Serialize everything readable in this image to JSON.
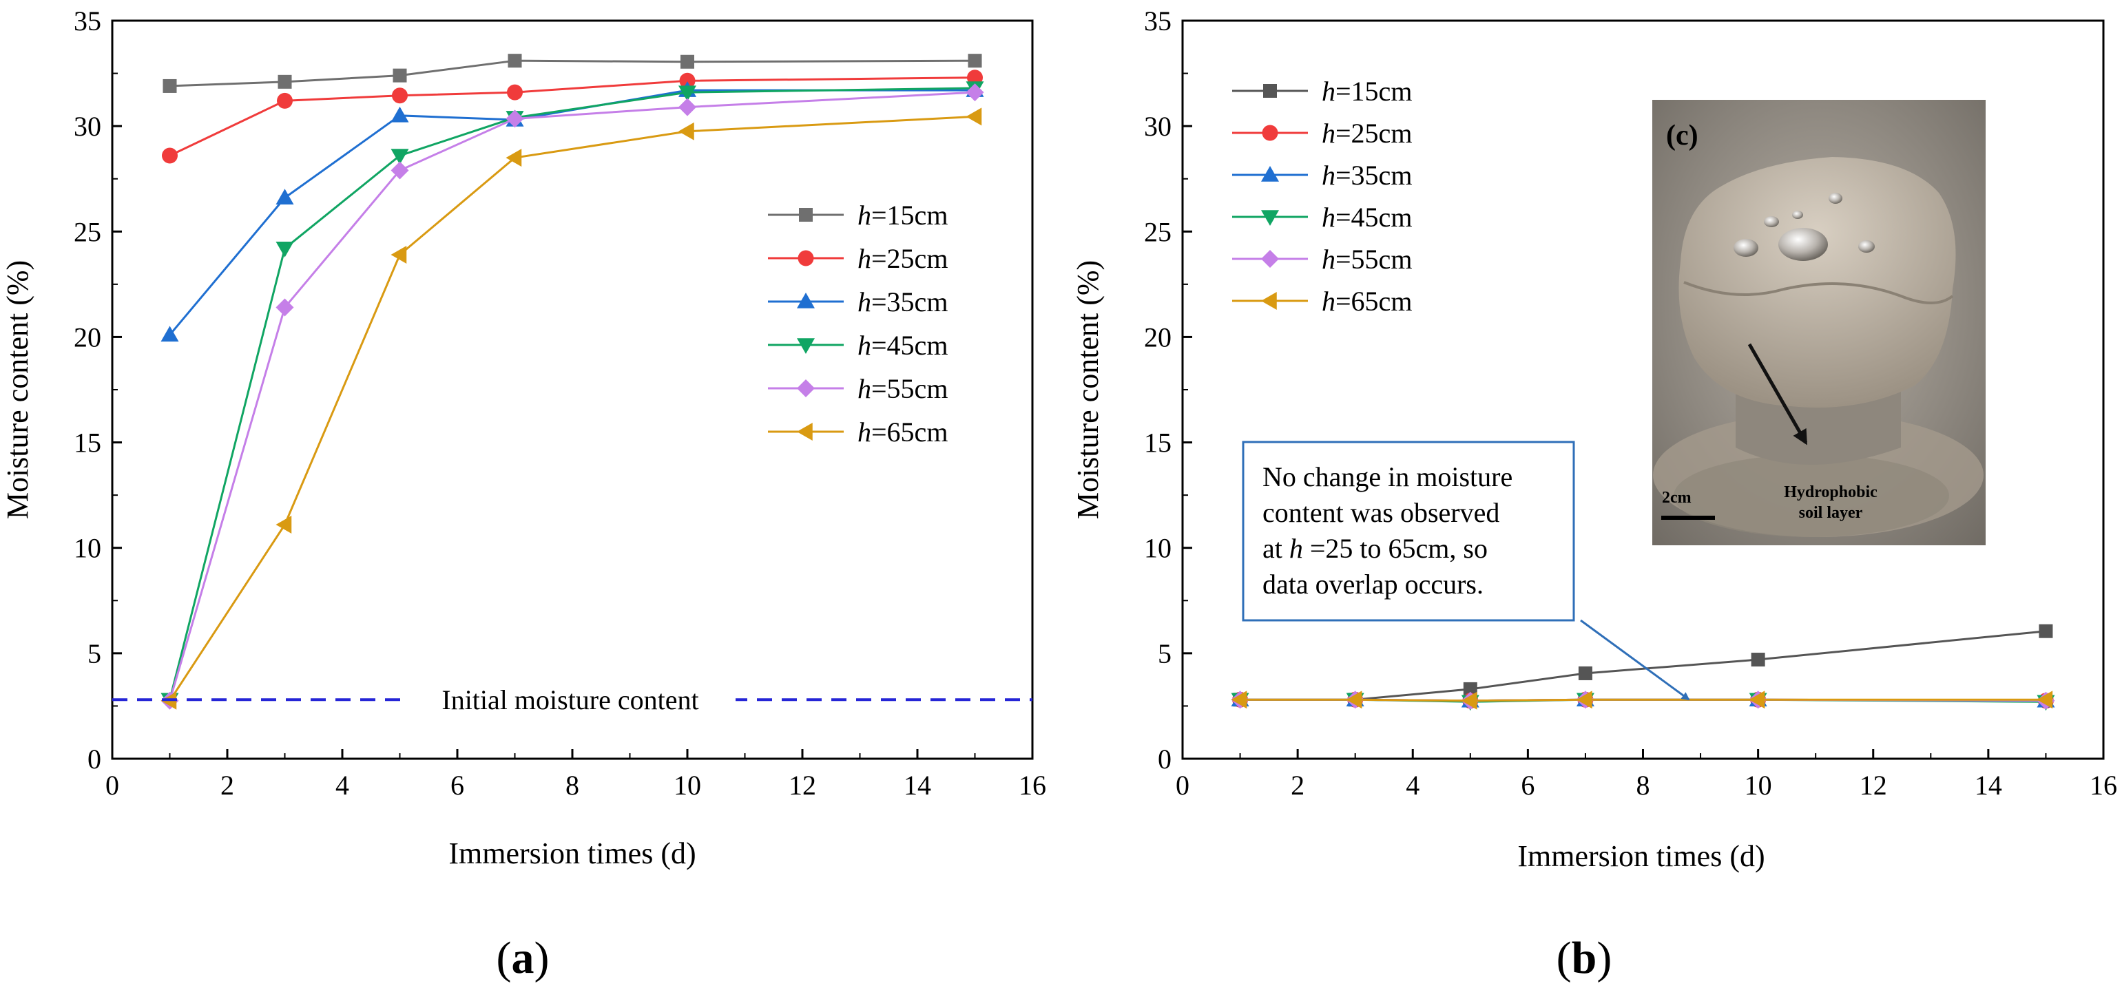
{
  "chart_data": [
    {
      "type": "line",
      "panel_label": "(a)",
      "panel_letter": "a",
      "xlabel": "Immersion times (d)",
      "ylabel": "Moisture content (%)",
      "xlim": [
        0,
        16
      ],
      "ylim": [
        0,
        35
      ],
      "x_ticks": [
        0,
        2,
        4,
        6,
        8,
        10,
        12,
        14,
        16
      ],
      "y_ticks": [
        0,
        5,
        10,
        15,
        20,
        25,
        30,
        35
      ],
      "grid": false,
      "legend_position": "right",
      "x": [
        1,
        3,
        5,
        7,
        10,
        15
      ],
      "series": [
        {
          "name": "h=15cm",
          "var": "h",
          "rest": "=15cm",
          "color": "#6f6f6f",
          "marker": "square",
          "values": [
            31.9,
            32.1,
            32.4,
            33.1,
            33.05,
            33.1
          ]
        },
        {
          "name": "h=25cm",
          "var": "h",
          "rest": "=25cm",
          "color": "#f03b3b",
          "marker": "circle",
          "values": [
            28.6,
            31.2,
            31.45,
            31.6,
            32.15,
            32.3
          ]
        },
        {
          "name": "h=35cm",
          "var": "h",
          "rest": "=35cm",
          "color": "#1f6fd1",
          "marker": "triangle-up",
          "values": [
            20.1,
            26.6,
            30.5,
            30.3,
            31.7,
            31.7
          ]
        },
        {
          "name": "h=45cm",
          "var": "h",
          "rest": "=45cm",
          "color": "#10a563",
          "marker": "triangle-down",
          "values": [
            2.8,
            24.2,
            28.6,
            30.4,
            31.6,
            31.8
          ]
        },
        {
          "name": "h=55cm",
          "var": "h",
          "rest": "=55cm",
          "color": "#c57fe8",
          "marker": "diamond",
          "values": [
            2.75,
            21.4,
            27.9,
            30.35,
            30.9,
            31.6
          ]
        },
        {
          "name": "h=65cm",
          "var": "h",
          "rest": "=65cm",
          "color": "#d99a12",
          "marker": "triangle-left",
          "values": [
            2.75,
            11.1,
            23.9,
            28.5,
            29.75,
            30.45
          ]
        }
      ],
      "reference_line": {
        "label": "Initial moisture content",
        "y": 2.8,
        "color": "#2525d6",
        "style": "dashed"
      }
    },
    {
      "type": "line",
      "panel_label": "(b)",
      "panel_letter": "b",
      "xlabel": "Immersion times (d)",
      "ylabel": "Moisture content (%)",
      "xlim": [
        0,
        16
      ],
      "ylim": [
        0,
        35
      ],
      "x_ticks": [
        0,
        2,
        4,
        6,
        8,
        10,
        12,
        14,
        16
      ],
      "y_ticks": [
        0,
        5,
        10,
        15,
        20,
        25,
        30,
        35
      ],
      "grid": false,
      "legend_position": "top-left",
      "x": [
        1,
        3,
        5,
        7,
        10,
        15
      ],
      "series": [
        {
          "name": "h=15cm",
          "var": "h",
          "rest": "=15cm",
          "color": "#555555",
          "marker": "square",
          "values": [
            2.8,
            2.8,
            3.3,
            4.05,
            4.7,
            6.05
          ]
        },
        {
          "name": "h=25cm",
          "var": "h",
          "rest": "=25cm",
          "color": "#f03b3b",
          "marker": "circle",
          "values": [
            2.8,
            2.8,
            2.75,
            2.8,
            2.8,
            2.75
          ]
        },
        {
          "name": "h=35cm",
          "var": "h",
          "rest": "=35cm",
          "color": "#1f6fd1",
          "marker": "triangle-up",
          "values": [
            2.8,
            2.8,
            2.75,
            2.8,
            2.8,
            2.75
          ]
        },
        {
          "name": "h=45cm",
          "var": "h",
          "rest": "=45cm",
          "color": "#10a563",
          "marker": "triangle-down",
          "values": [
            2.8,
            2.8,
            2.7,
            2.8,
            2.8,
            2.7
          ]
        },
        {
          "name": "h=55cm",
          "var": "h",
          "rest": "=55cm",
          "color": "#c57fe8",
          "marker": "diamond",
          "values": [
            2.8,
            2.8,
            2.75,
            2.8,
            2.8,
            2.75
          ]
        },
        {
          "name": "h=65cm",
          "var": "h",
          "rest": "=65cm",
          "color": "#d99a12",
          "marker": "triangle-left",
          "values": [
            2.8,
            2.8,
            2.75,
            2.8,
            2.8,
            2.8
          ]
        }
      ],
      "annotation": {
        "lines": [
          "No change in moisture",
          "content was observed",
          "=25 to 65cm, so",
          "data overlap occurs."
        ],
        "line3_prefix": "at ",
        "line3_var": "h",
        "arrow_color": "#2f6fb8",
        "box_color": "#2f6fb8"
      },
      "inset_photo": {
        "label": "(c)",
        "label_letter": "c",
        "scale_bar": "2cm",
        "callout_line1": "Hydrophobic",
        "callout_line2": "soil layer"
      }
    }
  ]
}
